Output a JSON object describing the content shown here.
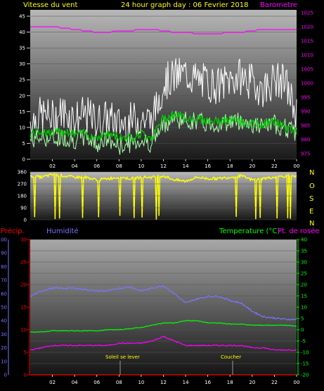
{
  "header": {
    "wind_label": "Vitesse du vent",
    "graph_title": "24 hour graph day : 06 Fevrier 2018",
    "baro_label": "Barometre"
  },
  "colors": {
    "wind_label": "#ffff00",
    "title": "#ffff00",
    "baro": "#ff00ff",
    "gust": "#ffffff",
    "wind": "#aaffaa",
    "wind_avg": "#00cc00",
    "wind_dir": "#ffff00",
    "precip": "#ff0000",
    "humidity": "#7777ff",
    "temperature": "#00ff00",
    "dewpoint": "#ff00ff",
    "axis": "#ffffff"
  },
  "direction_axis": [
    "N",
    "O",
    "S",
    "E",
    "N"
  ],
  "bottom_header": {
    "precip_label": "Précip.",
    "humidity_label": "Humidité",
    "temp_label": "Temperature (°C)",
    "dew_label": "Pt. de rosée"
  },
  "annotations": {
    "sunrise": "Soleil se lever",
    "sunset": "Coucher"
  },
  "chart_data": [
    {
      "type": "line",
      "title": "24 hour graph day : 06 Fevrier 2018",
      "x": [
        0,
        1,
        2,
        3,
        4,
        5,
        6,
        7,
        8,
        9,
        10,
        11,
        12,
        13,
        14,
        15,
        16,
        17,
        18,
        19,
        20,
        21,
        22,
        23,
        24
      ],
      "xticks": [
        "02",
        "04",
        "06",
        "08",
        "10",
        "12",
        "14",
        "16",
        "18",
        "20",
        "22",
        "00"
      ],
      "y_left_label": "Vitesse du vent",
      "y_left_ticks": [
        0,
        5,
        10,
        15,
        20,
        25,
        30,
        35,
        40,
        45
      ],
      "y_left_lim": [
        0,
        47
      ],
      "y_right_label": "Barometre",
      "y_right_ticks": [
        975,
        980,
        985,
        990,
        995,
        1000,
        1005,
        1010,
        1015,
        1020,
        1025
      ],
      "y_right_lim": [
        973,
        1026
      ],
      "series": [
        {
          "name": "gust",
          "values": [
            12,
            14,
            13,
            15,
            13,
            14,
            12,
            13,
            11,
            12,
            13,
            12,
            24,
            26,
            27,
            25,
            24,
            23,
            25,
            26,
            24,
            22,
            25,
            24,
            14
          ]
        },
        {
          "name": "wind",
          "values": [
            6,
            7,
            6,
            7,
            6,
            7,
            5,
            6,
            4,
            5,
            6,
            5,
            11,
            13,
            12,
            12,
            11,
            11,
            12,
            12,
            11,
            10,
            11,
            10,
            8
          ]
        },
        {
          "name": "wind_avg",
          "values": [
            8,
            9,
            8,
            9,
            8,
            8,
            7,
            8,
            7,
            7,
            8,
            7,
            13,
            14,
            13,
            13,
            12,
            12,
            12,
            12,
            11,
            11,
            12,
            10,
            9
          ]
        },
        {
          "name": "Barometre",
          "values": [
            1020,
            1020,
            1020,
            1019.5,
            1019,
            1018.5,
            1018,
            1018,
            1018.5,
            1018.5,
            1019,
            1019,
            1018.5,
            1018,
            1018,
            1017.5,
            1017.5,
            1017.5,
            1018,
            1018,
            1018.5,
            1019,
            1019,
            1019,
            1019
          ]
        }
      ]
    },
    {
      "type": "line",
      "y_ticks": [
        0,
        90,
        180,
        270,
        360
      ],
      "y_lim": [
        0,
        360
      ],
      "series": [
        {
          "name": "wind_dir",
          "values": [
            330,
            320,
            340,
            330,
            320,
            320,
            300,
            310,
            320,
            310,
            320,
            320,
            330,
            300,
            290,
            320,
            310,
            310,
            320,
            330,
            300,
            310,
            320,
            330,
            320
          ]
        }
      ]
    },
    {
      "type": "line",
      "x": [
        0,
        1,
        2,
        3,
        4,
        5,
        6,
        7,
        8,
        9,
        10,
        11,
        12,
        13,
        14,
        15,
        16,
        17,
        18,
        19,
        20,
        21,
        22,
        23,
        24
      ],
      "xticks": [
        "02",
        "04",
        "06",
        "08",
        "10",
        "12",
        "14",
        "16",
        "18",
        "20",
        "22",
        "00"
      ],
      "y_hum_ticks": [
        0,
        10,
        20,
        30,
        40,
        50,
        60,
        70,
        80,
        90,
        100
      ],
      "y_precip_ticks": [
        0,
        5,
        10,
        15,
        20,
        25,
        30
      ],
      "y_temp_ticks": [
        -20,
        -15,
        -10,
        -5,
        0,
        5,
        10,
        15,
        20,
        25,
        30,
        35,
        40
      ],
      "y_temp_lim": [
        -20,
        40
      ],
      "series": [
        {
          "name": "Humidité",
          "values": [
            58,
            62,
            64,
            64,
            64,
            63,
            62,
            62,
            64,
            65,
            62,
            64,
            66,
            60,
            53,
            56,
            58,
            58,
            55,
            53,
            47,
            43,
            42,
            41,
            41
          ]
        },
        {
          "name": "Temperature",
          "values": [
            -1,
            -1,
            -0.5,
            -0.5,
            -0.5,
            -0.5,
            -0.5,
            0,
            0,
            0.5,
            1,
            2,
            3,
            3,
            4,
            4,
            3,
            3,
            2.5,
            2.5,
            2,
            2,
            2,
            2,
            1.5
          ]
        },
        {
          "name": "Pt. de rosée",
          "values": [
            -9,
            -8,
            -7,
            -7,
            -7,
            -7,
            -7,
            -7,
            -6,
            -6,
            -6,
            -5,
            -3,
            -5,
            -7,
            -7,
            -7,
            -7,
            -7,
            -7,
            -8,
            -8,
            -9,
            -9,
            -9
          ]
        },
        {
          "name": "Précip.",
          "values": [
            0,
            0,
            0,
            0,
            0,
            0,
            0,
            0,
            0,
            0,
            0,
            0,
            0,
            0,
            0,
            0,
            0,
            0,
            0,
            0,
            0,
            0,
            0,
            0,
            0
          ]
        }
      ]
    }
  ]
}
